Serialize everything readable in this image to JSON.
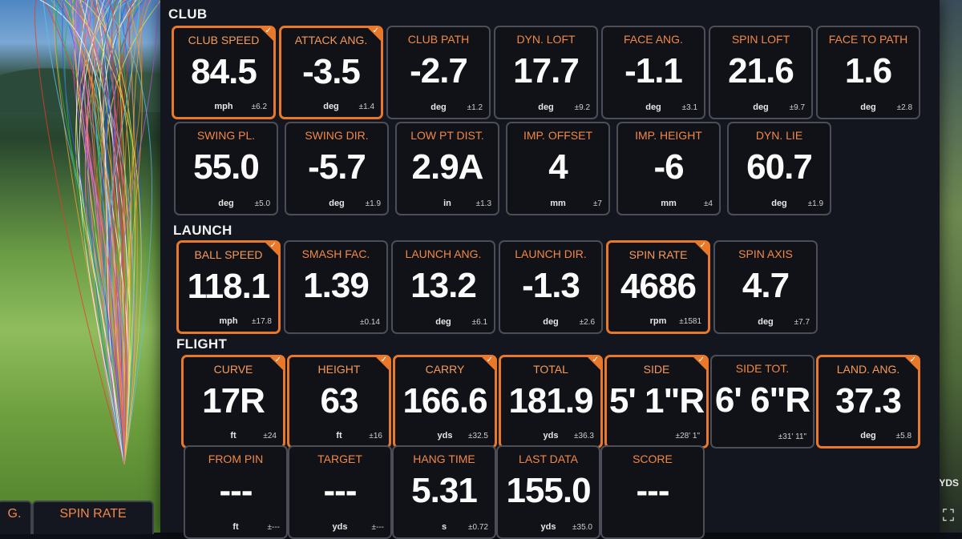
{
  "sections": {
    "club": "CLUB",
    "launch": "LAUNCH",
    "flight": "FLIGHT"
  },
  "accent": "#e8782a",
  "club_row1": [
    {
      "label": "CLUB SPEED",
      "value": "84.5",
      "unit": "mph",
      "dev": "±6.2",
      "hl": true
    },
    {
      "label": "ATTACK ANG.",
      "value": "-3.5",
      "unit": "deg",
      "dev": "±1.4",
      "hl": true
    },
    {
      "label": "CLUB PATH",
      "value": "-2.7",
      "unit": "deg",
      "dev": "±1.2",
      "hl": false
    },
    {
      "label": "DYN. LOFT",
      "value": "17.7",
      "unit": "deg",
      "dev": "±9.2",
      "hl": false
    },
    {
      "label": "FACE ANG.",
      "value": "-1.1",
      "unit": "deg",
      "dev": "±3.1",
      "hl": false
    },
    {
      "label": "SPIN LOFT",
      "value": "21.6",
      "unit": "deg",
      "dev": "±9.7",
      "hl": false
    },
    {
      "label": "FACE TO PATH",
      "value": "1.6",
      "unit": "deg",
      "dev": "±2.8",
      "hl": false
    }
  ],
  "club_row2": [
    {
      "label": "SWING PL.",
      "value": "55.0",
      "unit": "deg",
      "dev": "±5.0",
      "hl": false
    },
    {
      "label": "SWING DIR.",
      "value": "-5.7",
      "unit": "deg",
      "dev": "±1.9",
      "hl": false
    },
    {
      "label": "LOW PT DIST.",
      "value": "2.9A",
      "unit": "in",
      "dev": "±1.3",
      "hl": false
    },
    {
      "label": "IMP. OFFSET",
      "value": "4",
      "unit": "mm",
      "dev": "±7",
      "hl": false
    },
    {
      "label": "IMP. HEIGHT",
      "value": "-6",
      "unit": "mm",
      "dev": "±4",
      "hl": false
    },
    {
      "label": "DYN. LIE",
      "value": "60.7",
      "unit": "deg",
      "dev": "±1.9",
      "hl": false
    }
  ],
  "launch_row": [
    {
      "label": "BALL SPEED",
      "value": "118.1",
      "unit": "mph",
      "dev": "±17.8",
      "hl": true
    },
    {
      "label": "SMASH FAC.",
      "value": "1.39",
      "unit": "",
      "dev": "±0.14",
      "hl": false
    },
    {
      "label": "LAUNCH ANG.",
      "value": "13.2",
      "unit": "deg",
      "dev": "±6.1",
      "hl": false
    },
    {
      "label": "LAUNCH DIR.",
      "value": "-1.3",
      "unit": "deg",
      "dev": "±2.6",
      "hl": false
    },
    {
      "label": "SPIN RATE",
      "value": "4686",
      "unit": "rpm",
      "dev": "±1581",
      "hl": true
    },
    {
      "label": "SPIN AXIS",
      "value": "4.7",
      "unit": "deg",
      "dev": "±7.7",
      "hl": false
    }
  ],
  "flight_row1": [
    {
      "label": "CURVE",
      "value": "17R",
      "unit": "ft",
      "dev": "±24",
      "hl": true
    },
    {
      "label": "HEIGHT",
      "value": "63",
      "unit": "ft",
      "dev": "±16",
      "hl": true
    },
    {
      "label": "CARRY",
      "value": "166.6",
      "unit": "yds",
      "dev": "±32.5",
      "hl": true
    },
    {
      "label": "TOTAL",
      "value": "181.9",
      "unit": "yds",
      "dev": "±36.3",
      "hl": true
    },
    {
      "label": "SIDE",
      "value": "5' 1\"R",
      "unit": "",
      "dev": "±28' 1\"",
      "hl": true
    },
    {
      "label": "SIDE TOT.",
      "value": "6' 6\"R",
      "unit": "",
      "dev": "±31' 11\"",
      "hl": false
    },
    {
      "label": "LAND. ANG.",
      "value": "37.3",
      "unit": "deg",
      "dev": "±5.8",
      "hl": true
    }
  ],
  "flight_row2": [
    {
      "label": "FROM PIN",
      "value": "---",
      "unit": "ft",
      "dev": "±---",
      "hl": false
    },
    {
      "label": "TARGET",
      "value": "---",
      "unit": "yds",
      "dev": "±---",
      "hl": false
    },
    {
      "label": "HANG TIME",
      "value": "5.31",
      "unit": "s",
      "dev": "±0.72",
      "hl": false
    },
    {
      "label": "LAST DATA",
      "value": "155.0",
      "unit": "yds",
      "dev": "±35.0",
      "hl": false
    },
    {
      "label": "SCORE",
      "value": "---",
      "unit": "",
      "dev": "",
      "hl": false
    }
  ],
  "bottom_tabs": [
    "G.",
    "SPIN RATE"
  ],
  "units_label": "YDS",
  "icons": {
    "expand": "expand-icon",
    "check": "check-icon"
  }
}
